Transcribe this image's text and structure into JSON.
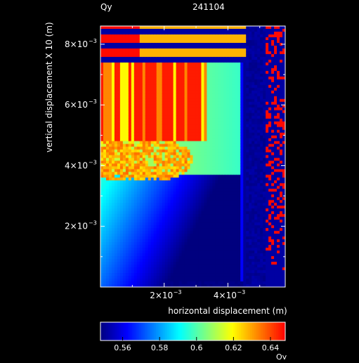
{
  "header": {
    "variable": "Qy",
    "id": "241104"
  },
  "chart_data": {
    "type": "heatmap",
    "xlabel": "horizontal displacement (m)",
    "ylabel": "vertical displacement X 10 (m)",
    "xlim": [
      0,
      0.0058
    ],
    "ylim": [
      0,
      0.0086
    ],
    "xticks": [
      {
        "value": 0.002,
        "mantissa": "2×10",
        "exp": "−3"
      },
      {
        "value": 0.004,
        "mantissa": "4×10",
        "exp": "−3"
      }
    ],
    "yticks": [
      {
        "value": 0.002,
        "mantissa": "2×10",
        "exp": "−3"
      },
      {
        "value": 0.004,
        "mantissa": "4×10",
        "exp": "−3"
      },
      {
        "value": 0.006,
        "mantissa": "6×10",
        "exp": "−3"
      },
      {
        "value": 0.008,
        "mantissa": "8×10",
        "exp": "−3"
      }
    ],
    "colorbar": {
      "label": "Qy",
      "range": [
        0.548,
        0.648
      ],
      "ticks": [
        {
          "value": 0.56,
          "label": "0.56"
        },
        {
          "value": 0.58,
          "label": "0.58"
        },
        {
          "value": 0.6,
          "label": "0.6"
        },
        {
          "value": 0.62,
          "label": "0.62"
        },
        {
          "value": 0.64,
          "label": "0.64"
        }
      ]
    },
    "colors": {
      "background": "#000000",
      "foreground": "#ffffff",
      "colormap": [
        "#00007f",
        "#0000ff",
        "#007fff",
        "#00ffff",
        "#7fff7f",
        "#ffff00",
        "#ff7f00",
        "#ff0000"
      ]
    }
  }
}
